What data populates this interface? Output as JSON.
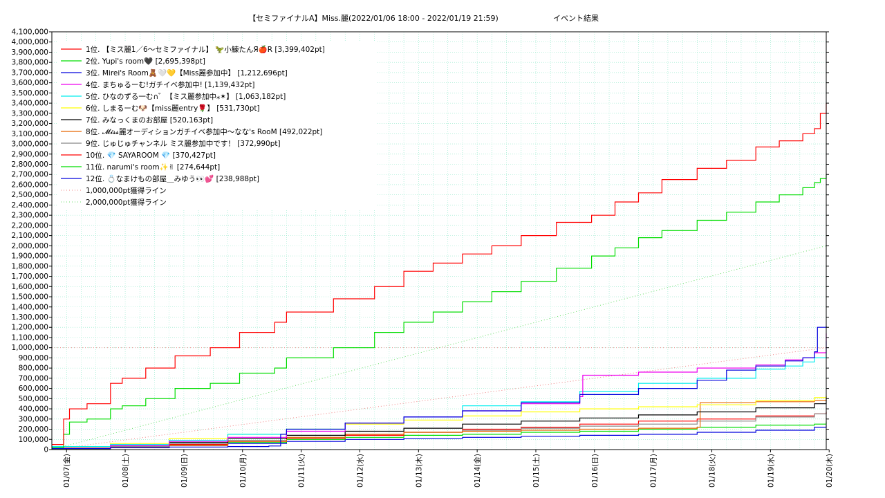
{
  "chart_data": {
    "type": "line",
    "title": "【セミファイナルA】Miss.麗(2022/01/06 18:00 - 2022/01/19 21:59)",
    "subtitle": "イベント結果",
    "xlabel": "",
    "ylabel": "",
    "ylim": [
      0,
      4100000
    ],
    "xlim": [
      0,
      13.2
    ],
    "y_ticks": [
      "0",
      "100,000",
      "200,000",
      "300,000",
      "400,000",
      "500,000",
      "600,000",
      "700,000",
      "800,000",
      "900,000",
      "1,000,000",
      "1,100,000",
      "1,200,000",
      "1,300,000",
      "1,400,000",
      "1,500,000",
      "1,600,000",
      "1,700,000",
      "1,800,000",
      "1,900,000",
      "2,000,000",
      "2,100,000",
      "2,200,000",
      "2,300,000",
      "2,400,000",
      "2,500,000",
      "2,600,000",
      "2,700,000",
      "2,800,000",
      "2,900,000",
      "3,000,000",
      "3,100,000",
      "3,200,000",
      "3,300,000",
      "3,400,000",
      "3,500,000",
      "3,600,000",
      "3,700,000",
      "3,800,000",
      "3,900,000",
      "4,000,000",
      "4,100,000"
    ],
    "x_ticks": [
      "01/07(金)",
      "01/08(土)",
      "01/09(日)",
      "01/10(月)",
      "01/11(火)",
      "01/12(水)",
      "01/13(木)",
      "01/14(金)",
      "01/15(土)",
      "01/16(日)",
      "01/17(月)",
      "01/18(火)",
      "01/19(水)",
      "01/20(木)"
    ],
    "grid": true,
    "legend_position": "top-left",
    "series": [
      {
        "name": "1位. 【ミス麗1／6〜セミファイナル】 🦖小鰊たんЯ🍎R [3,399,402pt]",
        "color": "#ff0000",
        "x": [
          0,
          0.2,
          0.3,
          0.6,
          1.0,
          1.2,
          1.6,
          2.1,
          2.7,
          3.2,
          3.8,
          4.0,
          4.8,
          5.5,
          6.0,
          6.5,
          7.0,
          7.5,
          8.0,
          8.6,
          9.2,
          9.6,
          10.0,
          10.4,
          11.0,
          11.5,
          12.0,
          12.4,
          12.8,
          13.0,
          13.1,
          13.2
        ],
        "y": [
          50000,
          300000,
          400000,
          450000,
          650000,
          700000,
          800000,
          920000,
          1000000,
          1150000,
          1250000,
          1350000,
          1480000,
          1600000,
          1750000,
          1830000,
          1920000,
          2000000,
          2100000,
          2230000,
          2300000,
          2430000,
          2520000,
          2650000,
          2760000,
          2840000,
          2970000,
          3030000,
          3100000,
          3150000,
          3300000,
          3399402
        ]
      },
      {
        "name": "2位. Yupi's room🖤 [2,695,398pt]",
        "color": "#00dd00",
        "x": [
          0,
          0.2,
          0.3,
          0.6,
          1.0,
          1.2,
          1.6,
          2.1,
          2.7,
          3.2,
          3.8,
          4.0,
          4.8,
          5.5,
          6.0,
          6.5,
          7.0,
          7.5,
          8.0,
          8.6,
          9.2,
          9.6,
          10.0,
          10.4,
          11.0,
          11.5,
          12.0,
          12.4,
          12.8,
          13.0,
          13.1,
          13.2
        ],
        "y": [
          20000,
          150000,
          270000,
          300000,
          400000,
          430000,
          500000,
          600000,
          650000,
          750000,
          800000,
          900000,
          1000000,
          1150000,
          1250000,
          1350000,
          1450000,
          1550000,
          1650000,
          1780000,
          1900000,
          1980000,
          2080000,
          2150000,
          2250000,
          2330000,
          2430000,
          2500000,
          2570000,
          2620000,
          2660000,
          2695398
        ]
      },
      {
        "name": "3位. Mirei's Room🧸🤍💛【Miss麗参加中】 [1,212,696pt]",
        "color": "#0000dd",
        "x": [
          0,
          1.0,
          2.0,
          3.0,
          3.7,
          3.9,
          4.0,
          5.0,
          6.0,
          7.0,
          8.0,
          9.0,
          10.0,
          11.0,
          11.5,
          12.0,
          12.5,
          12.8,
          13.0,
          13.05,
          13.2
        ],
        "y": [
          10000,
          20000,
          25000,
          30000,
          35000,
          150000,
          200000,
          260000,
          320000,
          380000,
          460000,
          540000,
          600000,
          680000,
          780000,
          820000,
          870000,
          900000,
          960000,
          1200000,
          1212696
        ]
      },
      {
        "name": "4位. まちゅるーむ!ガチイベ参加中! [1,139,432pt]",
        "color": "#ee00ee",
        "x": [
          0,
          1.0,
          2.0,
          3.0,
          4.0,
          5.0,
          6.0,
          7.0,
          8.0,
          9.0,
          9.05,
          10.0,
          11.0,
          12.0,
          12.5,
          12.8,
          13.0,
          13.2
        ],
        "y": [
          15000,
          40000,
          80000,
          120000,
          180000,
          260000,
          320000,
          380000,
          450000,
          520000,
          730000,
          760000,
          800000,
          830000,
          880000,
          900000,
          950000,
          1139432
        ]
      },
      {
        "name": "5位. ひなのずる一む∩゛【ミス麗参加中⁎✶】 [1,063,182pt]",
        "color": "#00eeee",
        "x": [
          0,
          1.0,
          2.0,
          3.0,
          4.0,
          5.0,
          6.0,
          7.0,
          8.0,
          9.0,
          10.0,
          11.0,
          12.0,
          12.5,
          12.8,
          13.0,
          13.2
        ],
        "y": [
          30000,
          50000,
          90000,
          150000,
          200000,
          260000,
          320000,
          430000,
          470000,
          570000,
          650000,
          700000,
          790000,
          820000,
          860000,
          900000,
          1063182
        ]
      },
      {
        "name": "6位. しまるーむ🐶【miss麗entry🌹】 [531,730pt]",
        "color": "#ffff00",
        "x": [
          0,
          1.0,
          2.0,
          3.0,
          4.0,
          5.0,
          6.0,
          7.0,
          8.0,
          9.0,
          10.0,
          11.0,
          12.0,
          13.0,
          13.2
        ],
        "y": [
          20000,
          60000,
          110000,
          150000,
          200000,
          250000,
          290000,
          330000,
          370000,
          400000,
          420000,
          440000,
          480000,
          510000,
          531730
        ]
      },
      {
        "name": "7位. みなっくまのお部屋 [520,163pt]",
        "color": "#000000",
        "x": [
          0,
          1.0,
          2.0,
          3.0,
          4.0,
          5.0,
          6.0,
          7.0,
          8.0,
          9.0,
          10.0,
          11.0,
          12.0,
          13.0,
          13.2
        ],
        "y": [
          20000,
          40000,
          70000,
          110000,
          140000,
          180000,
          210000,
          250000,
          280000,
          310000,
          340000,
          370000,
          410000,
          450000,
          520163
        ]
      },
      {
        "name": "8位. 𝓜𝓲𝓼𝓼麗オーディションガチイベ参加中〜なな's RooM [492,022pt]",
        "color": "#e86600",
        "x": [
          0,
          1.0,
          2.0,
          3.0,
          4.0,
          5.0,
          6.0,
          7.0,
          8.0,
          9.0,
          10.0,
          11.0,
          11.05,
          12.0,
          13.0,
          13.2
        ],
        "y": [
          10000,
          20000,
          40000,
          80000,
          120000,
          150000,
          170000,
          180000,
          190000,
          200000,
          210000,
          220000,
          460000,
          470000,
          480000,
          492022
        ]
      },
      {
        "name": "9位. じゅじゅチャンネル ミス麗参加中です！ [372,990pt]",
        "color": "#888888",
        "x": [
          0,
          1.0,
          2.0,
          3.0,
          4.0,
          5.0,
          6.0,
          7.0,
          8.0,
          9.0,
          10.0,
          11.0,
          12.0,
          13.0,
          13.2
        ],
        "y": [
          10000,
          30000,
          60000,
          90000,
          120000,
          150000,
          170000,
          190000,
          210000,
          230000,
          250000,
          280000,
          320000,
          350000,
          372990
        ]
      },
      {
        "name": "10位. 💎 SAYAROOM 💎 [370,427pt]",
        "color": "#ff0000",
        "x": [
          0,
          1.0,
          2.0,
          3.0,
          4.0,
          5.0,
          6.0,
          7.0,
          8.0,
          9.0,
          10.0,
          11.0,
          12.0,
          13.0,
          13.2
        ],
        "y": [
          10000,
          25000,
          50000,
          80000,
          110000,
          140000,
          170000,
          200000,
          220000,
          250000,
          280000,
          300000,
          330000,
          350000,
          370427
        ]
      },
      {
        "name": "11位. narumi's room✨✌ [274,644pt]",
        "color": "#00dd00",
        "x": [
          0,
          1.0,
          2.0,
          3.0,
          4.0,
          5.0,
          6.0,
          7.0,
          8.0,
          9.0,
          10.0,
          11.0,
          12.0,
          13.0,
          13.2
        ],
        "y": [
          5000,
          20000,
          50000,
          70000,
          100000,
          120000,
          140000,
          150000,
          170000,
          180000,
          200000,
          220000,
          240000,
          250000,
          274644
        ]
      },
      {
        "name": "12位. 💍なまけもの部屋＿みゆう👀💕 [238,988pt]",
        "color": "#0000dd",
        "x": [
          0,
          1.0,
          2.0,
          3.0,
          4.0,
          5.0,
          6.0,
          7.0,
          8.0,
          9.0,
          10.0,
          11.0,
          12.0,
          13.0,
          13.2
        ],
        "y": [
          5000,
          20000,
          40000,
          60000,
          80000,
          100000,
          110000,
          120000,
          130000,
          140000,
          150000,
          170000,
          190000,
          220000,
          238988
        ]
      }
    ],
    "reference_lines": [
      {
        "name": "1,000,000pt獲得ライン",
        "color": "#f08080",
        "y_end": 1000000
      },
      {
        "name": "2,000,000pt獲得ライン",
        "color": "#66dd66",
        "y_end": 2000000
      }
    ]
  }
}
